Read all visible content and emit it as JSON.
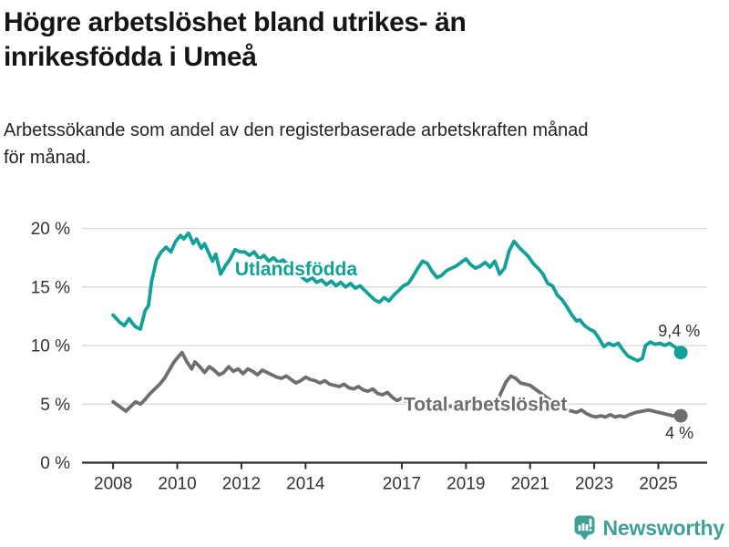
{
  "title": {
    "lines": [
      "Högre arbetslöshet bland utrikes- än",
      "inrikesfödda i Umeå"
    ],
    "color": "#151515"
  },
  "subtitle": {
    "lines": [
      "Arbetssökande som andel av den registerbaserade arbetskraften månad",
      "för månad."
    ],
    "color": "#232323"
  },
  "footer": {
    "brand": "Newsworthy",
    "icon": "newsworthy-logo-icon",
    "color": "#3f9f99"
  },
  "chart_data": {
    "type": "line",
    "unit": "%",
    "grid": "horizontal",
    "legend_position": "inline-labels",
    "xlim": [
      2007.03,
      2026.52
    ],
    "ylim": [
      0,
      20.9
    ],
    "grid_color": "#d9d9d9",
    "axis_color": "#2b2b2b",
    "tick_label_color": "#333333",
    "x_ticks": {
      "years": [
        2008,
        2010,
        2012,
        2014,
        2017,
        2019,
        2021,
        2023,
        2025
      ],
      "labels": [
        "2008",
        "2010",
        "2012",
        "2014",
        "2017",
        "2019",
        "2021",
        "2023",
        "2025"
      ]
    },
    "y_ticks": {
      "values": [
        0,
        5,
        10,
        15,
        20
      ],
      "labels": [
        "0 %",
        "5 %",
        "10 %",
        "15 %",
        "20 %"
      ]
    },
    "series": [
      {
        "id": "utlandsfodda",
        "name": "Utlandsfödda",
        "color": "#12a098",
        "last_value_label": "9,4 %",
        "points": [
          [
            2008.0,
            12.6
          ],
          [
            2008.1,
            12.3
          ],
          [
            2008.2,
            12.0
          ],
          [
            2008.35,
            11.7
          ],
          [
            2008.5,
            12.3
          ],
          [
            2008.6,
            11.9
          ],
          [
            2008.7,
            11.6
          ],
          [
            2008.85,
            11.4
          ],
          [
            2009.0,
            13.0
          ],
          [
            2009.1,
            13.4
          ],
          [
            2009.2,
            15.5
          ],
          [
            2009.35,
            17.3
          ],
          [
            2009.5,
            18.0
          ],
          [
            2009.65,
            18.4
          ],
          [
            2009.8,
            18.0
          ],
          [
            2009.95,
            18.9
          ],
          [
            2010.1,
            19.4
          ],
          [
            2010.2,
            19.1
          ],
          [
            2010.35,
            19.6
          ],
          [
            2010.5,
            18.7
          ],
          [
            2010.6,
            19.1
          ],
          [
            2010.75,
            18.3
          ],
          [
            2010.85,
            18.7
          ],
          [
            2011.0,
            17.8
          ],
          [
            2011.1,
            17.2
          ],
          [
            2011.2,
            17.8
          ],
          [
            2011.35,
            16.1
          ],
          [
            2011.5,
            16.8
          ],
          [
            2011.65,
            17.4
          ],
          [
            2011.8,
            18.2
          ],
          [
            2011.95,
            18.0
          ],
          [
            2012.1,
            18.0
          ],
          [
            2012.25,
            17.7
          ],
          [
            2012.4,
            18.0
          ],
          [
            2012.55,
            17.4
          ],
          [
            2012.7,
            17.7
          ],
          [
            2012.85,
            17.2
          ],
          [
            2013.0,
            17.5
          ],
          [
            2013.15,
            17.1
          ],
          [
            2013.3,
            17.3
          ],
          [
            2013.45,
            16.9
          ],
          [
            2013.6,
            16.6
          ],
          [
            2013.75,
            16.2
          ],
          [
            2013.9,
            15.8
          ],
          [
            2014.05,
            15.5
          ],
          [
            2014.2,
            15.8
          ],
          [
            2014.35,
            15.4
          ],
          [
            2014.5,
            15.6
          ],
          [
            2014.65,
            15.2
          ],
          [
            2014.8,
            15.5
          ],
          [
            2014.95,
            15.1
          ],
          [
            2015.1,
            15.4
          ],
          [
            2015.25,
            15.0
          ],
          [
            2015.4,
            15.3
          ],
          [
            2015.55,
            14.9
          ],
          [
            2015.7,
            15.1
          ],
          [
            2015.85,
            14.7
          ],
          [
            2016.0,
            14.3
          ],
          [
            2016.15,
            13.9
          ],
          [
            2016.3,
            13.7
          ],
          [
            2016.45,
            14.1
          ],
          [
            2016.6,
            13.8
          ],
          [
            2016.75,
            14.3
          ],
          [
            2016.9,
            14.7
          ],
          [
            2017.05,
            15.1
          ],
          [
            2017.2,
            15.3
          ],
          [
            2017.35,
            15.9
          ],
          [
            2017.5,
            16.6
          ],
          [
            2017.65,
            17.2
          ],
          [
            2017.8,
            17.0
          ],
          [
            2017.95,
            16.3
          ],
          [
            2018.1,
            15.8
          ],
          [
            2018.25,
            16.0
          ],
          [
            2018.4,
            16.4
          ],
          [
            2018.55,
            16.6
          ],
          [
            2018.7,
            16.8
          ],
          [
            2018.85,
            17.1
          ],
          [
            2019.0,
            17.4
          ],
          [
            2019.15,
            16.9
          ],
          [
            2019.3,
            16.6
          ],
          [
            2019.45,
            16.8
          ],
          [
            2019.6,
            17.1
          ],
          [
            2019.75,
            16.7
          ],
          [
            2019.9,
            17.2
          ],
          [
            2020.05,
            16.1
          ],
          [
            2020.2,
            16.6
          ],
          [
            2020.35,
            18.1
          ],
          [
            2020.5,
            18.9
          ],
          [
            2020.65,
            18.4
          ],
          [
            2020.8,
            18.0
          ],
          [
            2020.95,
            17.6
          ],
          [
            2021.1,
            17.0
          ],
          [
            2021.25,
            16.6
          ],
          [
            2021.4,
            16.1
          ],
          [
            2021.55,
            15.3
          ],
          [
            2021.7,
            15.1
          ],
          [
            2021.85,
            14.3
          ],
          [
            2022.0,
            13.9
          ],
          [
            2022.15,
            13.3
          ],
          [
            2022.3,
            12.6
          ],
          [
            2022.45,
            12.1
          ],
          [
            2022.55,
            12.2
          ],
          [
            2022.7,
            11.7
          ],
          [
            2022.85,
            11.4
          ],
          [
            2023.0,
            11.2
          ],
          [
            2023.15,
            10.6
          ],
          [
            2023.3,
            9.9
          ],
          [
            2023.45,
            10.2
          ],
          [
            2023.6,
            10.0
          ],
          [
            2023.75,
            10.2
          ],
          [
            2023.9,
            9.6
          ],
          [
            2024.05,
            9.1
          ],
          [
            2024.2,
            8.9
          ],
          [
            2024.35,
            8.7
          ],
          [
            2024.5,
            8.9
          ],
          [
            2024.6,
            10.0
          ],
          [
            2024.75,
            10.3
          ],
          [
            2024.9,
            10.1
          ],
          [
            2025.05,
            10.2
          ],
          [
            2025.2,
            10.0
          ],
          [
            2025.35,
            10.2
          ],
          [
            2025.5,
            9.9
          ],
          [
            2025.6,
            9.7
          ],
          [
            2025.7,
            9.4
          ]
        ]
      },
      {
        "id": "total",
        "name": "Total arbetslöshet",
        "color": "#6e6e6e",
        "last_value_label": "4 %",
        "points": [
          [
            2008.0,
            5.2
          ],
          [
            2008.1,
            5.0
          ],
          [
            2008.25,
            4.7
          ],
          [
            2008.4,
            4.4
          ],
          [
            2008.55,
            4.8
          ],
          [
            2008.7,
            5.2
          ],
          [
            2008.85,
            5.0
          ],
          [
            2009.0,
            5.4
          ],
          [
            2009.15,
            5.9
          ],
          [
            2009.3,
            6.3
          ],
          [
            2009.45,
            6.7
          ],
          [
            2009.6,
            7.2
          ],
          [
            2009.75,
            7.9
          ],
          [
            2009.9,
            8.6
          ],
          [
            2010.05,
            9.1
          ],
          [
            2010.15,
            9.4
          ],
          [
            2010.3,
            8.6
          ],
          [
            2010.45,
            8.0
          ],
          [
            2010.55,
            8.6
          ],
          [
            2010.7,
            8.2
          ],
          [
            2010.85,
            7.7
          ],
          [
            2011.0,
            8.2
          ],
          [
            2011.15,
            7.9
          ],
          [
            2011.3,
            7.5
          ],
          [
            2011.45,
            7.7
          ],
          [
            2011.6,
            8.2
          ],
          [
            2011.75,
            7.8
          ],
          [
            2011.9,
            8.0
          ],
          [
            2012.05,
            7.6
          ],
          [
            2012.2,
            8.0
          ],
          [
            2012.35,
            7.8
          ],
          [
            2012.5,
            7.5
          ],
          [
            2012.65,
            7.9
          ],
          [
            2012.8,
            7.7
          ],
          [
            2012.95,
            7.5
          ],
          [
            2013.1,
            7.3
          ],
          [
            2013.25,
            7.2
          ],
          [
            2013.4,
            7.4
          ],
          [
            2013.55,
            7.1
          ],
          [
            2013.7,
            6.8
          ],
          [
            2013.85,
            7.0
          ],
          [
            2014.0,
            7.3
          ],
          [
            2014.15,
            7.1
          ],
          [
            2014.3,
            7.0
          ],
          [
            2014.45,
            6.8
          ],
          [
            2014.6,
            7.0
          ],
          [
            2014.75,
            6.7
          ],
          [
            2014.9,
            6.6
          ],
          [
            2015.05,
            6.5
          ],
          [
            2015.2,
            6.7
          ],
          [
            2015.35,
            6.4
          ],
          [
            2015.5,
            6.3
          ],
          [
            2015.65,
            6.5
          ],
          [
            2015.8,
            6.2
          ],
          [
            2015.95,
            6.1
          ],
          [
            2016.1,
            6.3
          ],
          [
            2016.25,
            5.9
          ],
          [
            2016.4,
            5.8
          ],
          [
            2016.55,
            6.0
          ],
          [
            2016.7,
            5.6
          ],
          [
            2016.85,
            5.3
          ],
          [
            2017.0,
            5.5
          ],
          [
            2017.15,
            5.2
          ],
          [
            2017.3,
            5.4
          ],
          [
            2017.45,
            5.1
          ],
          [
            2017.6,
            5.3
          ],
          [
            2017.75,
            5.1
          ],
          [
            2017.9,
            5.0
          ],
          [
            2018.1,
            4.9
          ],
          [
            2018.3,
            5.0
          ],
          [
            2018.5,
            4.8
          ],
          [
            2018.7,
            4.7
          ],
          [
            2018.9,
            4.8
          ],
          [
            2019.1,
            4.7
          ],
          [
            2019.3,
            4.8
          ],
          [
            2019.5,
            4.7
          ],
          [
            2019.7,
            4.9
          ],
          [
            2019.85,
            5.0
          ],
          [
            2020.0,
            5.4
          ],
          [
            2020.1,
            6.0
          ],
          [
            2020.25,
            6.9
          ],
          [
            2020.4,
            7.4
          ],
          [
            2020.55,
            7.2
          ],
          [
            2020.7,
            6.8
          ],
          [
            2020.85,
            6.7
          ],
          [
            2021.0,
            6.6
          ],
          [
            2021.2,
            6.2
          ],
          [
            2021.4,
            5.8
          ],
          [
            2021.6,
            5.4
          ],
          [
            2021.8,
            5.0
          ],
          [
            2022.0,
            4.7
          ],
          [
            2022.15,
            4.5
          ],
          [
            2022.3,
            4.4
          ],
          [
            2022.45,
            4.3
          ],
          [
            2022.6,
            4.5
          ],
          [
            2022.75,
            4.2
          ],
          [
            2022.9,
            4.0
          ],
          [
            2023.05,
            3.9
          ],
          [
            2023.2,
            4.0
          ],
          [
            2023.35,
            3.9
          ],
          [
            2023.5,
            4.1
          ],
          [
            2023.65,
            3.9
          ],
          [
            2023.8,
            4.0
          ],
          [
            2023.95,
            3.9
          ],
          [
            2024.1,
            4.1
          ],
          [
            2024.3,
            4.3
          ],
          [
            2024.5,
            4.4
          ],
          [
            2024.7,
            4.5
          ],
          [
            2024.85,
            4.4
          ],
          [
            2025.0,
            4.3
          ],
          [
            2025.15,
            4.2
          ],
          [
            2025.3,
            4.1
          ],
          [
            2025.45,
            4.0
          ],
          [
            2025.6,
            4.0
          ],
          [
            2025.7,
            4.0
          ]
        ]
      }
    ],
    "annotations": [
      {
        "id": "series-label-utlandsfodda",
        "text": "Utlandsfödda",
        "x": 2011.8,
        "y": 16.0,
        "anchor": "start",
        "color": "#12a098",
        "bold": true,
        "size": 21
      },
      {
        "id": "series-label-total",
        "text": "Total arbetslöshet",
        "x": 2017.06,
        "y": 4.45,
        "anchor": "start",
        "color": "#6e6e6e",
        "bold": true,
        "size": 21
      },
      {
        "id": "end-value-utlandsfodda",
        "text": "9,4 %",
        "x": 2026.3,
        "y": 10.8,
        "anchor": "end",
        "color": "#333333",
        "bold": false,
        "size": 18
      },
      {
        "id": "end-value-total",
        "text": "4 %",
        "x": 2026.1,
        "y": 2.05,
        "anchor": "end",
        "color": "#333333",
        "bold": false,
        "size": 18
      }
    ]
  }
}
